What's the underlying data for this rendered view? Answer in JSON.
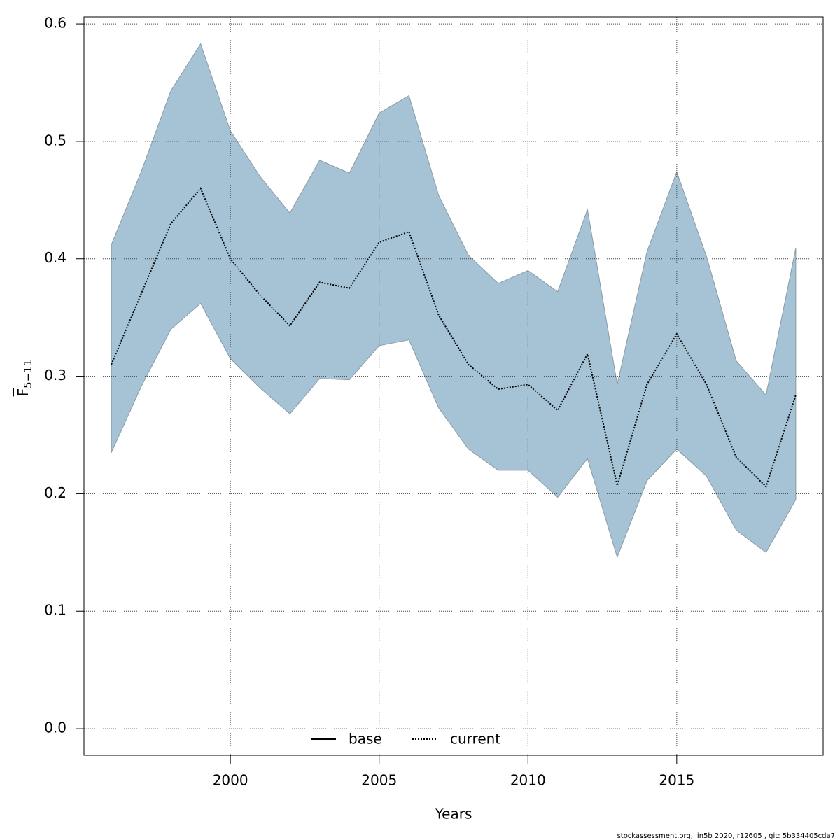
{
  "chart_data": {
    "type": "line",
    "xlabel": "Years",
    "ylabel": "F",
    "ylabel_subscript": "5−11",
    "footer": "stockassessment.org, lin5b 2020, r12605 , git: 5b334405cda7",
    "x": [
      1996,
      1997,
      1998,
      1999,
      2000,
      2001,
      2002,
      2003,
      2004,
      2005,
      2006,
      2007,
      2008,
      2009,
      2010,
      2011,
      2012,
      2013,
      2014,
      2015,
      2016,
      2017,
      2018,
      2019
    ],
    "series": [
      {
        "name": "base",
        "color": "#000000",
        "dash": "solid"
      },
      {
        "name": "current",
        "color": "#000000",
        "dash": "dotted",
        "values": [
          0.31,
          0.37,
          0.43,
          0.46,
          0.4,
          0.369,
          0.343,
          0.38,
          0.375,
          0.414,
          0.423,
          0.352,
          0.31,
          0.289,
          0.293,
          0.271,
          0.319,
          0.207,
          0.293,
          0.336,
          0.293,
          0.231,
          0.206,
          0.284
        ]
      }
    ],
    "band": {
      "color": "#a5c3d4",
      "upper": [
        0.412,
        0.474,
        0.543,
        0.583,
        0.509,
        0.47,
        0.439,
        0.484,
        0.473,
        0.524,
        0.539,
        0.454,
        0.403,
        0.379,
        0.39,
        0.372,
        0.442,
        0.293,
        0.406,
        0.474,
        0.402,
        0.313,
        0.284,
        0.409
      ],
      "lower": [
        0.235,
        0.291,
        0.34,
        0.362,
        0.315,
        0.29,
        0.268,
        0.298,
        0.297,
        0.326,
        0.331,
        0.273,
        0.238,
        0.22,
        0.22,
        0.197,
        0.23,
        0.146,
        0.211,
        0.238,
        0.215,
        0.169,
        0.15,
        0.195
      ]
    },
    "xlim": [
      1995.08,
      2019.92
    ],
    "ylim": [
      -0.0226,
      0.606
    ],
    "xticks": [
      2000,
      2005,
      2010,
      2015
    ],
    "yticks": [
      {
        "value": 0,
        "label": "0.0"
      },
      0.1,
      0.2,
      0.3,
      0.4,
      0.5,
      0.6
    ],
    "grid": true
  }
}
